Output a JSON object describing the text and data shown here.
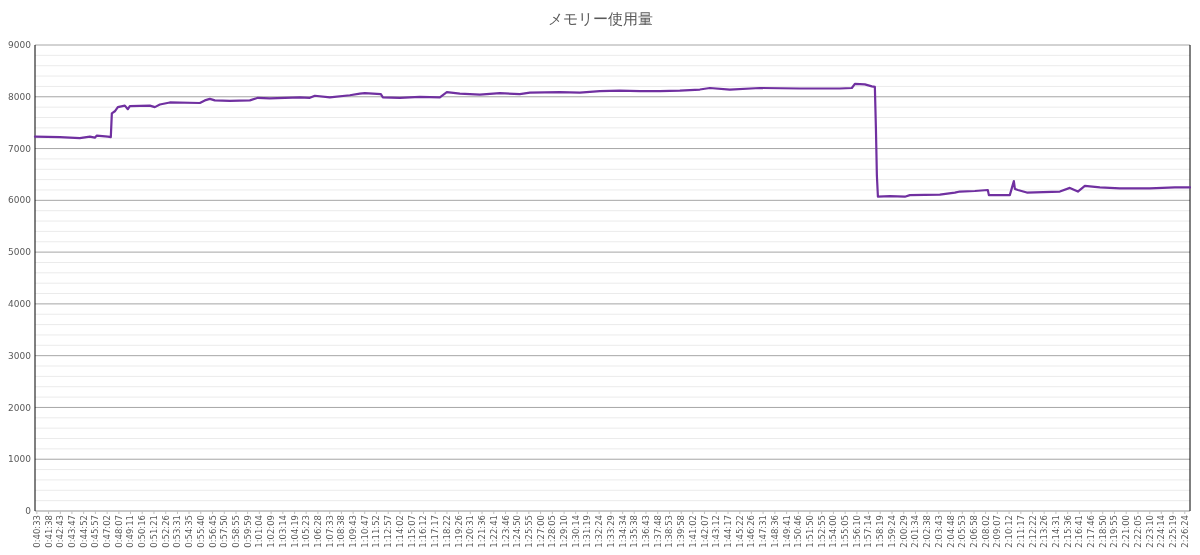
{
  "chart_data": {
    "type": "line",
    "title": "メモリー使用量",
    "x": [
      0.673,
      0.7112,
      0.7419,
      0.7573,
      0.765,
      0.768,
      0.785,
      0.7895,
      0.7911,
      0.7957,
      0.8003,
      0.8111,
      0.8157,
      0.8188,
      0.8495,
      0.8572,
      0.8649,
      0.8802,
      0.9263,
      0.934,
      0.9417,
      0.9494,
      0.9724,
      1.0032,
      1.0155,
      1.0339,
      1.08,
      1.0954,
      1.1031,
      1.1261,
      1.1569,
      1.1722,
      1.1799,
      1.2045,
      1.2076,
      1.2337,
      1.2644,
      1.2952,
      1.3059,
      1.3259,
      1.3567,
      1.3874,
      1.4181,
      1.4335,
      1.4796,
      1.5103,
      1.5411,
      1.5718,
      1.6025,
      1.6333,
      1.664,
      1.6947,
      1.7101,
      1.7408,
      1.7869,
      1.8484,
      1.9099,
      1.9283,
      1.933,
      1.9483,
      1.9591,
      1.9637,
      1.9653,
      1.9668,
      1.9684,
      1.9868,
      2.0098,
      2.0175,
      2.0636,
      2.0866,
      2.0943,
      2.1174,
      2.1373,
      2.1389,
      2.1711,
      2.1773,
      2.1789,
      2.1835,
      2.1973,
      2.248,
      2.2634,
      2.2757,
      2.2864,
      2.3095,
      2.3402,
      2.3863,
      2.4247,
      2.448
    ],
    "series": [
      {
        "color": "#7030a0",
        "values": [
          7230,
          7220,
          7200,
          7230,
          7210,
          7250,
          7230,
          7220,
          7680,
          7720,
          7800,
          7830,
          7760,
          7820,
          7830,
          7800,
          7850,
          7890,
          7880,
          7930,
          7960,
          7930,
          7920,
          7930,
          7980,
          7970,
          7990,
          7980,
          8020,
          7990,
          8030,
          8060,
          8070,
          8050,
          7990,
          7980,
          8000,
          7990,
          8090,
          8060,
          8040,
          8070,
          8050,
          8080,
          8090,
          8080,
          8110,
          8120,
          8110,
          8110,
          8120,
          8140,
          8170,
          8140,
          8170,
          8160,
          8160,
          8170,
          8250,
          8240,
          8200,
          8190,
          7400,
          6480,
          6070,
          6080,
          6070,
          6100,
          6110,
          6150,
          6170,
          6180,
          6200,
          6100,
          6100,
          6370,
          6220,
          6200,
          6150,
          6170,
          6240,
          6170,
          6280,
          6250,
          6230,
          6230,
          6250,
          6250
        ]
      }
    ],
    "xlim": [
      0.673,
      2.448
    ],
    "xticks": [
      {
        "value": 0.67583,
        "label": "0:40:33"
      },
      {
        "value": 0.69389,
        "label": "0:41:38"
      },
      {
        "value": 0.71194,
        "label": "0:42:43"
      },
      {
        "value": 0.72972,
        "label": "0:43:47"
      },
      {
        "value": 0.74778,
        "label": "0:44:52"
      },
      {
        "value": 0.76583,
        "label": "0:45:57"
      },
      {
        "value": 0.78389,
        "label": "0:47:02"
      },
      {
        "value": 0.80194,
        "label": "0:48:07"
      },
      {
        "value": 0.81972,
        "label": "0:49:11"
      },
      {
        "value": 0.83778,
        "label": "0:50:16"
      },
      {
        "value": 0.85583,
        "label": "0:51:21"
      },
      {
        "value": 0.87389,
        "label": "0:52:26"
      },
      {
        "value": 0.89194,
        "label": "0:53:31"
      },
      {
        "value": 0.90972,
        "label": "0:54:35"
      },
      {
        "value": 0.92778,
        "label": "0:55:40"
      },
      {
        "value": 0.94583,
        "label": "0:56:45"
      },
      {
        "value": 0.96389,
        "label": "0:57:50"
      },
      {
        "value": 0.98194,
        "label": "0:58:55"
      },
      {
        "value": 0.99972,
        "label": "0:59:59"
      },
      {
        "value": 1.01778,
        "label": "1:01:04"
      },
      {
        "value": 1.03583,
        "label": "1:02:09"
      },
      {
        "value": 1.05389,
        "label": "1:03:14"
      },
      {
        "value": 1.07194,
        "label": "1:04:19"
      },
      {
        "value": 1.08972,
        "label": "1:05:23"
      },
      {
        "value": 1.10778,
        "label": "1:06:28"
      },
      {
        "value": 1.12583,
        "label": "1:07:33"
      },
      {
        "value": 1.14389,
        "label": "1:08:38"
      },
      {
        "value": 1.16194,
        "label": "1:09:43"
      },
      {
        "value": 1.17972,
        "label": "1:10:47"
      },
      {
        "value": 1.19778,
        "label": "1:11:52"
      },
      {
        "value": 1.21583,
        "label": "1:12:57"
      },
      {
        "value": 1.23389,
        "label": "1:14:02"
      },
      {
        "value": 1.25194,
        "label": "1:15:07"
      },
      {
        "value": 1.27,
        "label": "1:16:12"
      },
      {
        "value": 1.28806,
        "label": "1:17:17"
      },
      {
        "value": 1.30611,
        "label": "1:18:22"
      },
      {
        "value": 1.32389,
        "label": "1:19:26"
      },
      {
        "value": 1.34194,
        "label": "1:20:31"
      },
      {
        "value": 1.36,
        "label": "1:21:36"
      },
      {
        "value": 1.37806,
        "label": "1:22:41"
      },
      {
        "value": 1.39611,
        "label": "1:23:46"
      },
      {
        "value": 1.41389,
        "label": "1:24:50"
      },
      {
        "value": 1.43194,
        "label": "1:25:55"
      },
      {
        "value": 1.45,
        "label": "1:27:00"
      },
      {
        "value": 1.46806,
        "label": "1:28:05"
      },
      {
        "value": 1.48611,
        "label": "1:29:10"
      },
      {
        "value": 1.50389,
        "label": "1:30:14"
      },
      {
        "value": 1.52194,
        "label": "1:31:19"
      },
      {
        "value": 1.54,
        "label": "1:32:24"
      },
      {
        "value": 1.55806,
        "label": "1:33:29"
      },
      {
        "value": 1.57611,
        "label": "1:34:34"
      },
      {
        "value": 1.59389,
        "label": "1:35:38"
      },
      {
        "value": 1.61194,
        "label": "1:36:43"
      },
      {
        "value": 1.63,
        "label": "1:37:48"
      },
      {
        "value": 1.64806,
        "label": "1:38:53"
      },
      {
        "value": 1.66611,
        "label": "1:39:58"
      },
      {
        "value": 1.68389,
        "label": "1:41:02"
      },
      {
        "value": 1.70194,
        "label": "1:42:07"
      },
      {
        "value": 1.72,
        "label": "1:43:12"
      },
      {
        "value": 1.73806,
        "label": "1:44:17"
      },
      {
        "value": 1.75611,
        "label": "1:45:22"
      },
      {
        "value": 1.77389,
        "label": "1:46:26"
      },
      {
        "value": 1.79194,
        "label": "1:47:31"
      },
      {
        "value": 1.81,
        "label": "1:48:36"
      },
      {
        "value": 1.82806,
        "label": "1:49:41"
      },
      {
        "value": 1.84611,
        "label": "1:50:46"
      },
      {
        "value": 1.86389,
        "label": "1:51:50"
      },
      {
        "value": 1.88194,
        "label": "1:52:55"
      },
      {
        "value": 1.9,
        "label": "1:54:00"
      },
      {
        "value": 1.91806,
        "label": "1:55:05"
      },
      {
        "value": 1.93611,
        "label": "1:56:10"
      },
      {
        "value": 1.95389,
        "label": "1:57:14"
      },
      {
        "value": 1.97194,
        "label": "1:58:19"
      },
      {
        "value": 1.99,
        "label": "1:59:24"
      },
      {
        "value": 2.00806,
        "label": "2:00:29"
      },
      {
        "value": 2.02611,
        "label": "2:01:34"
      },
      {
        "value": 2.04389,
        "label": "2:02:38"
      },
      {
        "value": 2.06194,
        "label": "2:03:43"
      },
      {
        "value": 2.08,
        "label": "2:04:48"
      },
      {
        "value": 2.09806,
        "label": "2:05:53"
      },
      {
        "value": 2.11611,
        "label": "2:06:58"
      },
      {
        "value": 2.13389,
        "label": "2:08:02"
      },
      {
        "value": 2.15194,
        "label": "2:09:07"
      },
      {
        "value": 2.17,
        "label": "2:10:12"
      },
      {
        "value": 2.18806,
        "label": "2:11:17"
      },
      {
        "value": 2.20611,
        "label": "2:12:22"
      },
      {
        "value": 2.22389,
        "label": "2:13:26"
      },
      {
        "value": 2.24194,
        "label": "2:14:31"
      },
      {
        "value": 2.26,
        "label": "2:15:36"
      },
      {
        "value": 2.27806,
        "label": "2:16:41"
      },
      {
        "value": 2.29611,
        "label": "2:17:46"
      },
      {
        "value": 2.31389,
        "label": "2:18:50"
      },
      {
        "value": 2.33194,
        "label": "2:19:55"
      },
      {
        "value": 2.35,
        "label": "2:21:00"
      },
      {
        "value": 2.36806,
        "label": "2:22:05"
      },
      {
        "value": 2.38611,
        "label": "2:23:10"
      },
      {
        "value": 2.40389,
        "label": "2:24:14"
      },
      {
        "value": 2.42194,
        "label": "2:25:19"
      },
      {
        "value": 2.44,
        "label": "2:26:24"
      }
    ],
    "ylim": [
      0,
      9000
    ],
    "yticks": [
      0,
      {
        "value": 200,
        "label": null
      },
      {
        "value": 400,
        "label": null
      },
      {
        "value": 600,
        "label": null
      },
      {
        "value": 800,
        "label": null
      },
      1000,
      {
        "value": 1200,
        "label": null
      },
      {
        "value": 1400,
        "label": null
      },
      {
        "value": 1600,
        "label": null
      },
      {
        "value": 1800,
        "label": null
      },
      2000,
      {
        "value": 2200,
        "label": null
      },
      {
        "value": 2400,
        "label": null
      },
      {
        "value": 2600,
        "label": null
      },
      {
        "value": 2800,
        "label": null
      },
      3000,
      {
        "value": 3200,
        "label": null
      },
      {
        "value": 3400,
        "label": null
      },
      {
        "value": 3600,
        "label": null
      },
      {
        "value": 3800,
        "label": null
      },
      4000,
      {
        "value": 4200,
        "label": null
      },
      {
        "value": 4400,
        "label": null
      },
      {
        "value": 4600,
        "label": null
      },
      {
        "value": 4800,
        "label": null
      },
      5000,
      {
        "value": 5200,
        "label": null
      },
      {
        "value": 5400,
        "label": null
      },
      {
        "value": 5600,
        "label": null
      },
      {
        "value": 5800,
        "label": null
      },
      6000,
      {
        "value": 6200,
        "label": null
      },
      {
        "value": 6400,
        "label": null
      },
      {
        "value": 6600,
        "label": null
      },
      {
        "value": 6800,
        "label": null
      },
      7000,
      {
        "value": 7200,
        "label": null
      },
      {
        "value": 7400,
        "label": null
      },
      {
        "value": 7600,
        "label": null
      },
      {
        "value": 7800,
        "label": null
      },
      8000,
      {
        "value": 8200,
        "label": null
      },
      {
        "value": 8400,
        "label": null
      },
      {
        "value": 8600,
        "label": null
      },
      {
        "value": 8800,
        "label": null
      },
      9000
    ],
    "grid": "y",
    "marker": "none",
    "line_style": "solid"
  }
}
